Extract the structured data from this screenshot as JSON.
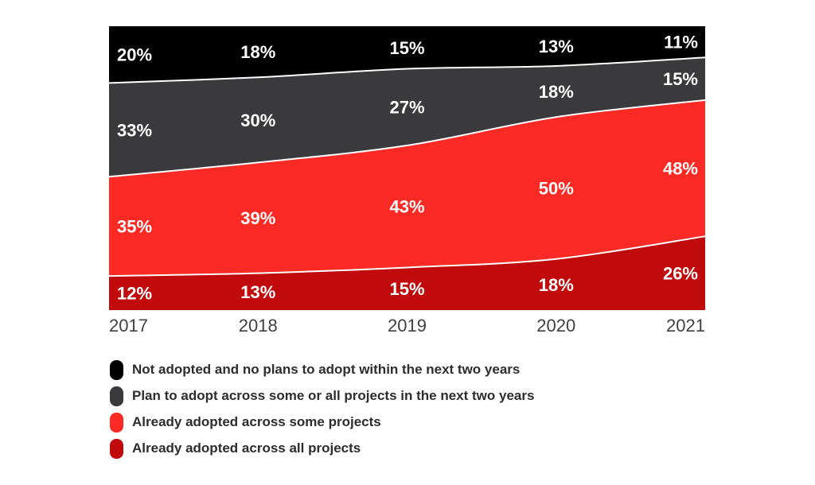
{
  "chart_data": {
    "type": "area",
    "variant": "stacked-100-percent",
    "title": "",
    "xlabel": "",
    "ylabel": "",
    "ylim": [
      0,
      100
    ],
    "grid": false,
    "legend_position": "bottom-left",
    "label_suffix": "%",
    "categories": [
      "2017",
      "2018",
      "2019",
      "2020",
      "2021"
    ],
    "series": [
      {
        "name": "Not adopted and no plans to adopt within the next two years",
        "color": "#000000",
        "values": [
          20,
          18,
          15,
          13,
          11
        ]
      },
      {
        "name": "Plan to adopt across some or all projects in the next two years",
        "color": "#3a3a3c",
        "values": [
          33,
          30,
          27,
          18,
          15
        ]
      },
      {
        "name": "Already adopted across some projects",
        "color": "#fb2a25",
        "values": [
          35,
          39,
          43,
          50,
          48
        ]
      },
      {
        "name": "Already adopted across all projects",
        "color": "#c00a0b",
        "values": [
          12,
          13,
          15,
          18,
          26
        ]
      }
    ]
  },
  "colors": {
    "background": "#ffffff",
    "separator_line": "#ffffff",
    "band_label_text": "#ffffff",
    "axis_label_text": "#404042",
    "legend_text": "#2d2d2d"
  }
}
